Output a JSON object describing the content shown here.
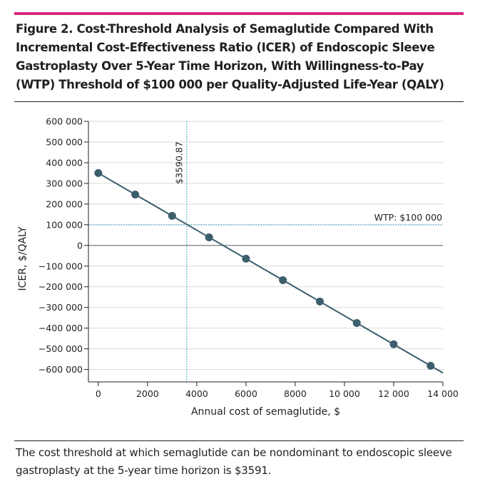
{
  "colors": {
    "accent": "#d6267a",
    "series": "#3d5e6d",
    "reference": "#5ab3d1",
    "gridline": "#d9d9d9",
    "text": "#231f20"
  },
  "figure": {
    "title": "Figure 2. Cost-Threshold Analysis of Semaglutide Compared With Incremental Cost-Effectiveness Ratio (ICER) of Endoscopic Sleeve Gastroplasty Over 5-Year Time Horizon, With Willingness-to-Pay (WTP) Threshold of $100 000 per Quality-Adjusted Life-Year (QALY)",
    "caption": "The cost threshold at which semaglutide can be nondominant to endoscopic sleeve gastroplasty at the 5-year time horizon is $3591."
  },
  "chart_data": {
    "type": "line",
    "xlabel": "Annual cost of semaglutide, $",
    "ylabel": "ICER, $/QALY",
    "xlim": [
      -400,
      14000
    ],
    "ylim": [
      -660000,
      600000
    ],
    "x_ticks": [
      0,
      2000,
      4000,
      6000,
      8000,
      10000,
      12000,
      14000
    ],
    "x_tick_labels": [
      "0",
      "2000",
      "4000",
      "6000",
      "8000",
      "10 000",
      "12 000",
      "14 000"
    ],
    "y_ticks": [
      600000,
      500000,
      400000,
      300000,
      200000,
      100000,
      0,
      -100000,
      -200000,
      -300000,
      -400000,
      -500000,
      -600000
    ],
    "y_tick_labels": [
      "600 000",
      "500 000",
      "400 000",
      "300 000",
      "200 000",
      "100 000",
      "0",
      "−100 000",
      "−200 000",
      "−300 000",
      "−400 000",
      "−500 000",
      "−600 000"
    ],
    "grid": true,
    "series": [
      {
        "name": "ICER",
        "x": [
          0,
          1500,
          3000,
          4500,
          6000,
          7500,
          9000,
          10500,
          12000,
          13500
        ],
        "y": [
          350000,
          246000,
          143000,
          39000,
          -64000,
          -168000,
          -271000,
          -375000,
          -478000,
          -582000
        ]
      }
    ],
    "line_extent_x": [
      0,
      14000
    ],
    "wtp_threshold": {
      "value": 100000,
      "label": "WTP: $100 000"
    },
    "cost_threshold": {
      "value": 3590.87,
      "label": "$3590.87"
    }
  }
}
